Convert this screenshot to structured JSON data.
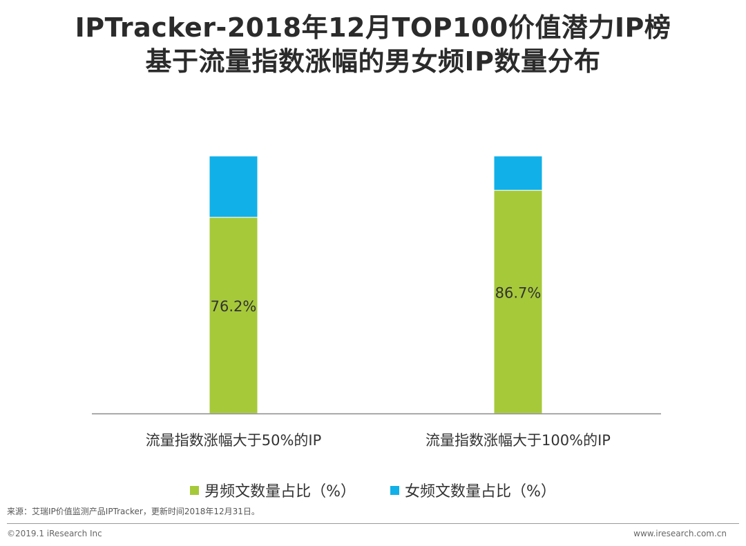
{
  "title_line1": "IPTracker-2018年12月TOP100价值潜力IP榜",
  "title_line2": "基于流量指数涨幅的男女频IP数量分布",
  "chart_data": {
    "type": "bar",
    "stacked": true,
    "percent_stacked": true,
    "categories": [
      "流量指数涨幅大于50%的IP",
      "流量指数涨幅大于100%的IP"
    ],
    "series": [
      {
        "name": "男频文数量占比（%）",
        "values": [
          76.2,
          86.7
        ],
        "color": "#a6c93a",
        "labels": [
          "76.2%",
          "86.7%"
        ]
      },
      {
        "name": "女频文数量占比（%）",
        "values": [
          23.8,
          13.3
        ],
        "color": "#11b0e8"
      }
    ],
    "ylim": [
      0,
      100
    ],
    "legend_position": "bottom"
  },
  "source_note": "来源：艾瑞IP价值监测产品IPTracker，更新时间2018年12月31日。",
  "copyright": "©2019.1 iResearch Inc",
  "website": "www.iresearch.com.cn"
}
